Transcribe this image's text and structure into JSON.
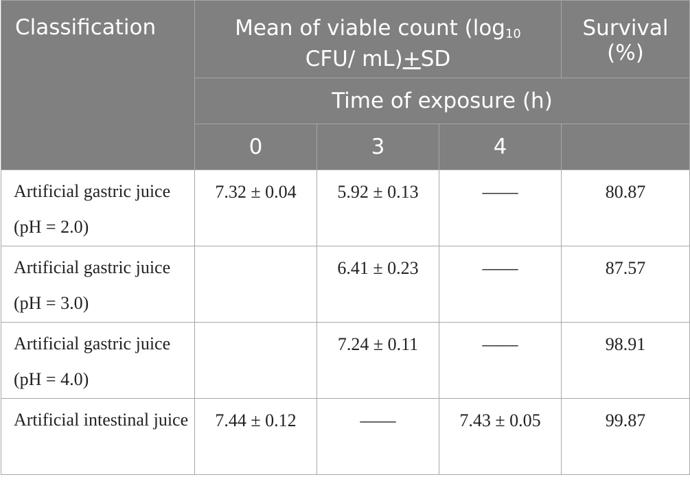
{
  "header": {
    "classification": "Classification",
    "mean_prefix": "Mean of viable count (log",
    "mean_sub": "10",
    "mean_line2": "CFU/ mL)",
    "pm_symbol": "+",
    "sd": "SD",
    "survival_line1": "Survival",
    "survival_line2": "(%)",
    "time_of_exposure": "Time of exposure (h)",
    "time_0": "0",
    "time_3": "3",
    "time_4": "4"
  },
  "rows": [
    {
      "classification": "Artificial gastric juice (pH = 2.0)",
      "t0": "7.32 ± 0.04",
      "t3": "5.92 ± 0.13",
      "t4": "——",
      "survival": "80.87"
    },
    {
      "classification": "Artificial gastric juice (pH = 3.0)",
      "t0": "",
      "t3": "6.41 ± 0.23",
      "t4": "——",
      "survival": "87.57"
    },
    {
      "classification": "Artificial gastric juice (pH = 4.0)",
      "t0": "",
      "t3": "7.24 ± 0.11",
      "t4": "——",
      "survival": "98.91"
    },
    {
      "classification": "Artificial intestinal juice",
      "t0": "7.44 ± 0.12",
      "t3": "——",
      "t4": "7.43 ± 0.05",
      "survival": "99.87"
    }
  ]
}
